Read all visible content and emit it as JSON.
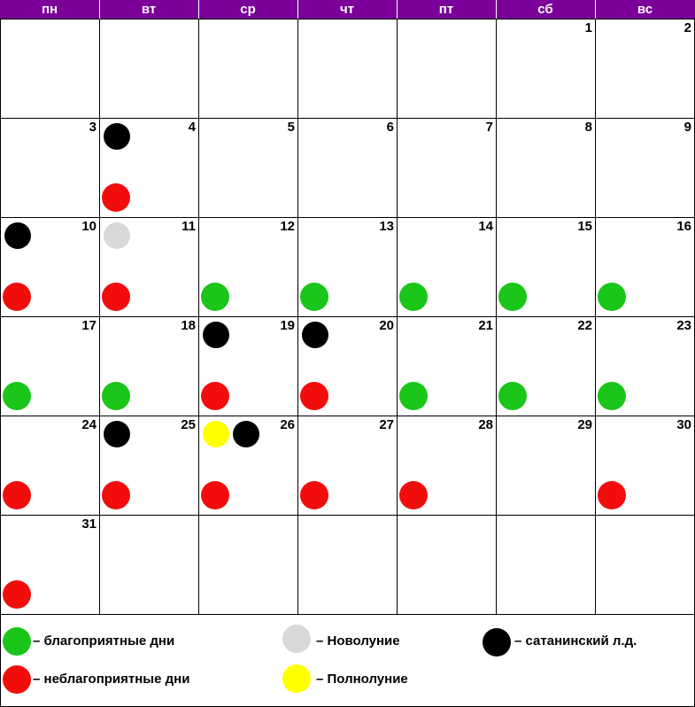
{
  "colors": {
    "header_bg": "#7a0099",
    "header_text": "#ffffff",
    "favorable": "#19c619",
    "unfavorable": "#f20d0d",
    "satanic": "#000000",
    "new_moon": "#d9d9d9",
    "full_moon": "#ffff00"
  },
  "weekdays": [
    "пн",
    "вт",
    "ср",
    "чт",
    "пт",
    "сб",
    "вс"
  ],
  "weeks": [
    [
      {
        "day": "",
        "marks": []
      },
      {
        "day": "",
        "marks": []
      },
      {
        "day": "",
        "marks": []
      },
      {
        "day": "",
        "marks": []
      },
      {
        "day": "",
        "marks": []
      },
      {
        "day": "1",
        "marks": []
      },
      {
        "day": "2",
        "marks": []
      }
    ],
    [
      {
        "day": "3",
        "marks": []
      },
      {
        "day": "4",
        "marks": [
          "satanic",
          "unfavorable"
        ]
      },
      {
        "day": "5",
        "marks": []
      },
      {
        "day": "6",
        "marks": []
      },
      {
        "day": "7",
        "marks": []
      },
      {
        "day": "8",
        "marks": []
      },
      {
        "day": "9",
        "marks": []
      }
    ],
    [
      {
        "day": "10",
        "marks": [
          "satanic",
          "unfavorable"
        ]
      },
      {
        "day": "11",
        "marks": [
          "new_moon",
          "unfavorable"
        ]
      },
      {
        "day": "12",
        "marks": [
          "favorable"
        ]
      },
      {
        "day": "13",
        "marks": [
          "favorable"
        ]
      },
      {
        "day": "14",
        "marks": [
          "favorable"
        ]
      },
      {
        "day": "15",
        "marks": [
          "favorable"
        ]
      },
      {
        "day": "16",
        "marks": [
          "favorable"
        ]
      }
    ],
    [
      {
        "day": "17",
        "marks": [
          "favorable"
        ]
      },
      {
        "day": "18",
        "marks": [
          "favorable"
        ]
      },
      {
        "day": "19",
        "marks": [
          "satanic",
          "unfavorable"
        ]
      },
      {
        "day": "20",
        "marks": [
          "satanic",
          "unfavorable"
        ]
      },
      {
        "day": "21",
        "marks": [
          "favorable"
        ]
      },
      {
        "day": "22",
        "marks": [
          "favorable"
        ]
      },
      {
        "day": "23",
        "marks": [
          "favorable"
        ]
      }
    ],
    [
      {
        "day": "24",
        "marks": [
          "unfavorable"
        ]
      },
      {
        "day": "25",
        "marks": [
          "satanic",
          "unfavorable"
        ]
      },
      {
        "day": "26",
        "marks": [
          "full_moon",
          "satanic",
          "unfavorable"
        ]
      },
      {
        "day": "27",
        "marks": [
          "unfavorable"
        ]
      },
      {
        "day": "28",
        "marks": [
          "unfavorable"
        ]
      },
      {
        "day": "29",
        "marks": []
      },
      {
        "day": "30",
        "marks": [
          "unfavorable"
        ]
      }
    ],
    [
      {
        "day": "31",
        "marks": [
          "unfavorable"
        ]
      },
      {
        "day": "",
        "marks": []
      },
      {
        "day": "",
        "marks": []
      },
      {
        "day": "",
        "marks": []
      },
      {
        "day": "",
        "marks": []
      },
      {
        "day": "",
        "marks": []
      },
      {
        "day": "",
        "marks": []
      }
    ]
  ],
  "legend": {
    "favorable": "– благоприятные дни",
    "unfavorable": "– неблагоприятные дни",
    "new_moon": "– Новолуние",
    "full_moon": "– Полнолуние",
    "satanic": "– сатанинский л.д."
  }
}
